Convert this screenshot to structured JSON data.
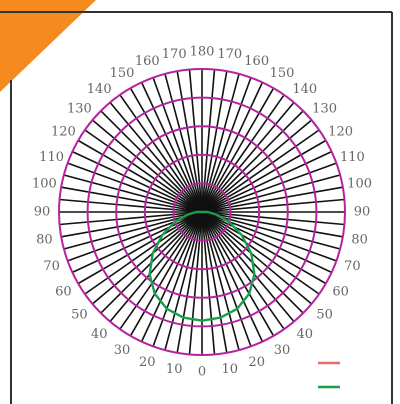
{
  "chart_data": {
    "type": "polar-line",
    "angle_tick_labels": [
      {
        "label": "0",
        "angle": 0
      },
      {
        "label": "10",
        "angle": 10
      },
      {
        "label": "20",
        "angle": 20
      },
      {
        "label": "30",
        "angle": 30
      },
      {
        "label": "40",
        "angle": 40
      },
      {
        "label": "50",
        "angle": 50
      },
      {
        "label": "60",
        "angle": 60
      },
      {
        "label": "70",
        "angle": 70
      },
      {
        "label": "80",
        "angle": 80
      },
      {
        "label": "90",
        "angle": 90
      },
      {
        "label": "100",
        "angle": 100
      },
      {
        "label": "110",
        "angle": 110
      },
      {
        "label": "120",
        "angle": 120
      },
      {
        "label": "130",
        "angle": 130
      },
      {
        "label": "140",
        "angle": 140
      },
      {
        "label": "150",
        "angle": 150
      },
      {
        "label": "160",
        "angle": 160
      },
      {
        "label": "170",
        "angle": 170
      },
      {
        "label": "180",
        "angle": 180
      },
      {
        "label": "170",
        "angle": 190
      },
      {
        "label": "160",
        "angle": 200
      },
      {
        "label": "150",
        "angle": 210
      },
      {
        "label": "140",
        "angle": 220
      },
      {
        "label": "130",
        "angle": 230
      },
      {
        "label": "120",
        "angle": 240
      },
      {
        "label": "110",
        "angle": 250
      },
      {
        "label": "100",
        "angle": 260
      },
      {
        "label": "90",
        "angle": 270
      },
      {
        "label": "80",
        "angle": 280
      },
      {
        "label": "70",
        "angle": 290
      },
      {
        "label": "60",
        "angle": 300
      },
      {
        "label": "50",
        "angle": 310
      },
      {
        "label": "40",
        "angle": 320
      },
      {
        "label": "30",
        "angle": 330
      },
      {
        "label": "20",
        "angle": 340
      },
      {
        "label": "10",
        "angle": 350
      }
    ],
    "radial_rings": [
      0.2,
      0.4,
      0.6,
      0.8,
      1.0
    ],
    "radial_range": [
      0,
      1
    ],
    "spoke_step_deg": 5,
    "series": [
      {
        "color": "#e86a6a",
        "points": []
      },
      {
        "color": "#1a9e4e",
        "points": [
          {
            "angle": 0,
            "r": 0.76
          },
          {
            "angle": 10,
            "r": 0.75
          },
          {
            "angle": 20,
            "r": 0.72
          },
          {
            "angle": 30,
            "r": 0.66
          },
          {
            "angle": 40,
            "r": 0.57
          },
          {
            "angle": 50,
            "r": 0.45
          },
          {
            "angle": 60,
            "r": 0.32
          },
          {
            "angle": 70,
            "r": 0.2
          },
          {
            "angle": 80,
            "r": 0.1
          },
          {
            "angle": 90,
            "r": 0.04
          },
          {
            "angle": 270,
            "r": 0.04
          },
          {
            "angle": 280,
            "r": 0.1
          },
          {
            "angle": 290,
            "r": 0.2
          },
          {
            "angle": 300,
            "r": 0.32
          },
          {
            "angle": 310,
            "r": 0.45
          },
          {
            "angle": 320,
            "r": 0.57
          },
          {
            "angle": 330,
            "r": 0.66
          },
          {
            "angle": 340,
            "r": 0.72
          },
          {
            "angle": 350,
            "r": 0.75
          }
        ]
      }
    ],
    "legend": {
      "placement": "bottom-right"
    },
    "colors": {
      "ring": "#b5249e",
      "spoke": "#111111",
      "tick_label": "#666666",
      "corner_accent": "#f58a1f",
      "frame": "#333333"
    }
  }
}
